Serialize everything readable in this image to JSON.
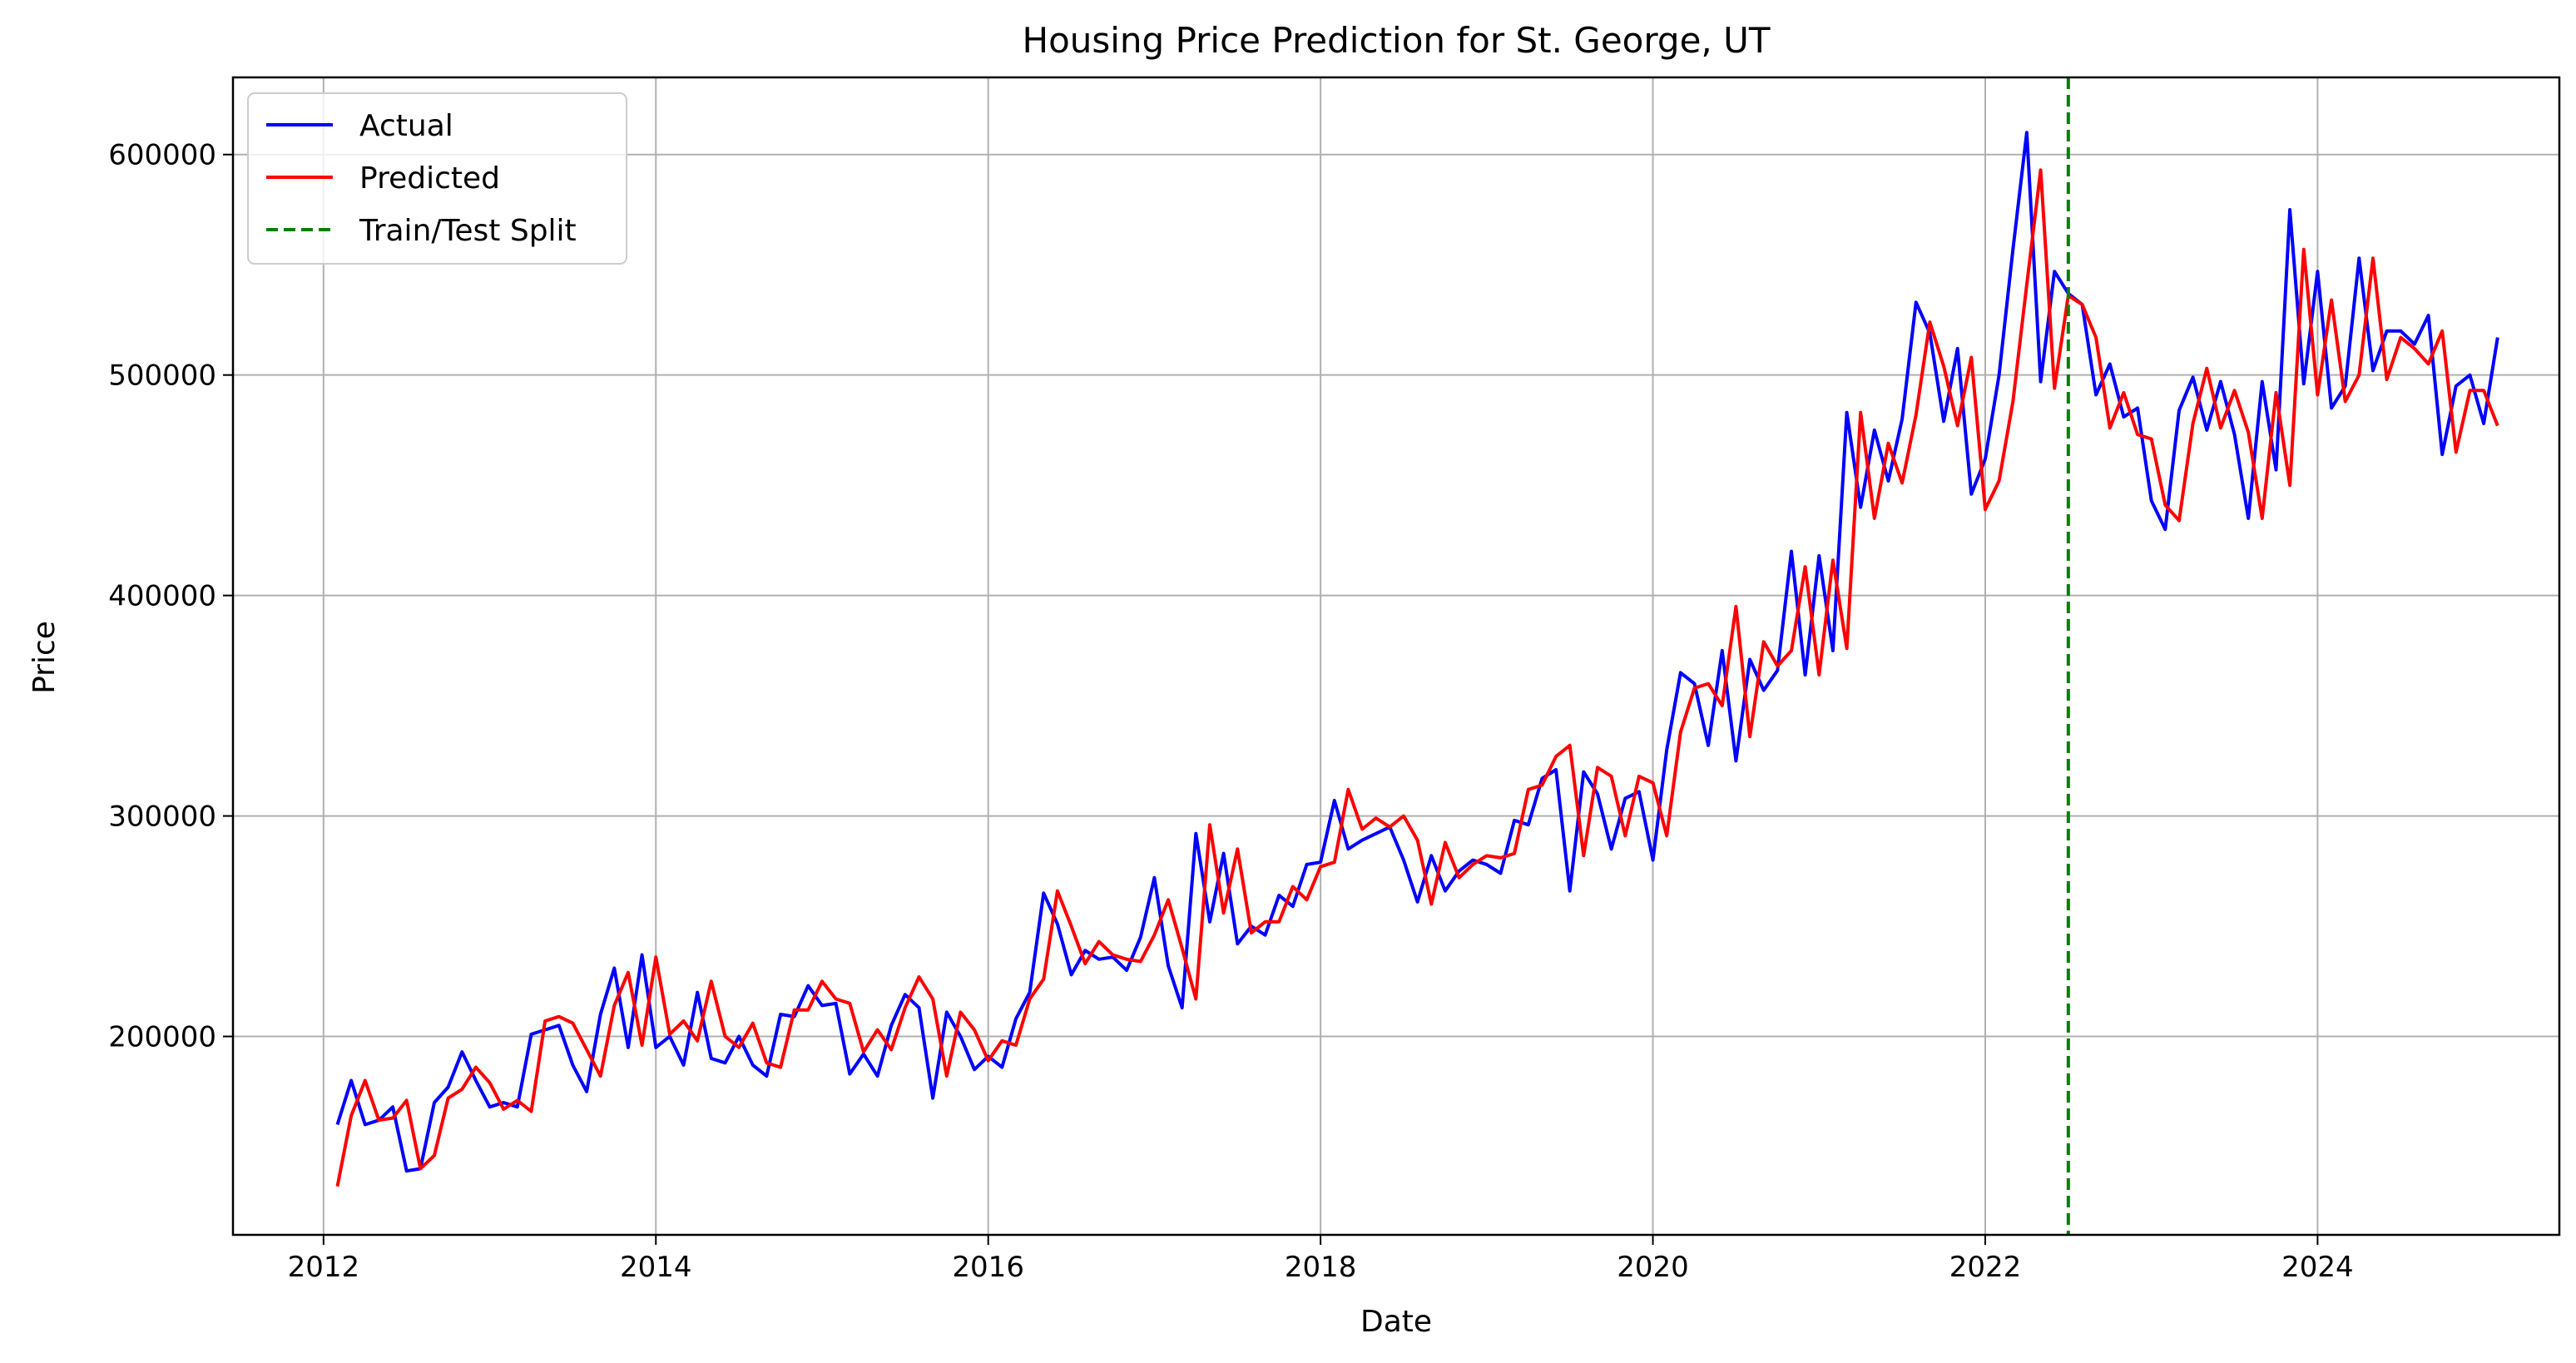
{
  "figure": {
    "title": "Housing Price Prediction for St. George, UT",
    "xlabel": "Date",
    "ylabel": "Price"
  },
  "legend": {
    "placement": "top-left",
    "items": [
      {
        "label": "Actual",
        "color": "#0000ff",
        "style": "solid"
      },
      {
        "label": "Predicted",
        "color": "#ff0000",
        "style": "solid"
      },
      {
        "label": "Train/Test Split",
        "color": "#008000",
        "style": "dashed"
      }
    ]
  },
  "chart_data": {
    "type": "line",
    "title": "Housing Price Prediction for St. George, UT",
    "xlabel": "Date",
    "ylabel": "Price",
    "x_type": "date",
    "xlim": [
      "2011-06-15",
      "2025-06-15"
    ],
    "ylim": [
      110000,
      635000
    ],
    "grid": true,
    "x_ticks": [
      "2012",
      "2014",
      "2016",
      "2018",
      "2020",
      "2022",
      "2024"
    ],
    "y_ticks": [
      200000,
      300000,
      400000,
      500000,
      600000
    ],
    "split_date": "2022-07-01",
    "x": [
      "2012-02",
      "2012-03",
      "2012-04",
      "2012-05",
      "2012-06",
      "2012-07",
      "2012-08",
      "2012-09",
      "2012-10",
      "2012-11",
      "2012-12",
      "2013-01",
      "2013-02",
      "2013-03",
      "2013-04",
      "2013-05",
      "2013-06",
      "2013-07",
      "2013-08",
      "2013-09",
      "2013-10",
      "2013-11",
      "2013-12",
      "2014-01",
      "2014-02",
      "2014-03",
      "2014-04",
      "2014-05",
      "2014-06",
      "2014-07",
      "2014-08",
      "2014-09",
      "2014-10",
      "2014-11",
      "2014-12",
      "2015-01",
      "2015-02",
      "2015-03",
      "2015-04",
      "2015-05",
      "2015-06",
      "2015-07",
      "2015-08",
      "2015-09",
      "2015-10",
      "2015-11",
      "2015-12",
      "2016-01",
      "2016-02",
      "2016-03",
      "2016-04",
      "2016-05",
      "2016-06",
      "2016-07",
      "2016-08",
      "2016-09",
      "2016-10",
      "2016-11",
      "2016-12",
      "2017-01",
      "2017-02",
      "2017-03",
      "2017-04",
      "2017-05",
      "2017-06",
      "2017-07",
      "2017-08",
      "2017-09",
      "2017-10",
      "2017-11",
      "2017-12",
      "2018-01",
      "2018-02",
      "2018-03",
      "2018-04",
      "2018-05",
      "2018-06",
      "2018-07",
      "2018-08",
      "2018-09",
      "2018-10",
      "2018-11",
      "2018-12",
      "2019-01",
      "2019-02",
      "2019-03",
      "2019-04",
      "2019-05",
      "2019-06",
      "2019-07",
      "2019-08",
      "2019-09",
      "2019-10",
      "2019-11",
      "2019-12",
      "2020-01",
      "2020-02",
      "2020-03",
      "2020-04",
      "2020-05",
      "2020-06",
      "2020-07",
      "2020-08",
      "2020-09",
      "2020-10",
      "2020-11",
      "2020-12",
      "2021-01",
      "2021-02",
      "2021-03",
      "2021-04",
      "2021-05",
      "2021-06",
      "2021-07",
      "2021-08",
      "2021-09",
      "2021-10",
      "2021-11",
      "2021-12",
      "2022-01",
      "2022-02",
      "2022-03",
      "2022-04",
      "2022-05",
      "2022-06",
      "2022-07",
      "2022-08",
      "2022-09",
      "2022-10",
      "2022-11",
      "2022-12",
      "2023-01",
      "2023-02",
      "2023-03",
      "2023-04",
      "2023-05",
      "2023-06",
      "2023-07",
      "2023-08",
      "2023-09",
      "2023-10",
      "2023-11",
      "2023-12",
      "2024-01",
      "2024-02",
      "2024-03",
      "2024-04",
      "2024-05",
      "2024-06",
      "2024-07",
      "2024-08",
      "2024-09",
      "2024-10",
      "2024-11",
      "2024-12",
      "2025-01",
      "2025-02"
    ],
    "series": [
      {
        "name": "Actual",
        "color": "#0000ff",
        "values": [
          160000,
          180000,
          160000,
          162000,
          168000,
          139000,
          140000,
          170000,
          177000,
          193000,
          180000,
          168000,
          170000,
          168000,
          201000,
          203000,
          205000,
          187000,
          175000,
          210000,
          231000,
          195000,
          237000,
          195000,
          200000,
          187000,
          220000,
          190000,
          188000,
          200000,
          187000,
          182000,
          210000,
          209000,
          223000,
          214000,
          215000,
          183000,
          192000,
          182000,
          205000,
          219000,
          213000,
          172000,
          211000,
          200000,
          185000,
          191000,
          186000,
          208000,
          220000,
          265000,
          251000,
          228000,
          239000,
          235000,
          236000,
          230000,
          245000,
          272000,
          232000,
          213000,
          292000,
          252000,
          283000,
          242000,
          250000,
          246000,
          264000,
          259000,
          278000,
          279000,
          307000,
          285000,
          289000,
          292000,
          295000,
          280000,
          261000,
          282000,
          266000,
          275000,
          280000,
          278000,
          274000,
          298000,
          296000,
          317000,
          321000,
          266000,
          320000,
          310000,
          285000,
          308000,
          311000,
          280000,
          330000,
          365000,
          360000,
          332000,
          375000,
          325000,
          371000,
          357000,
          366000,
          420000,
          364000,
          418000,
          375000,
          483000,
          440000,
          475000,
          452000,
          480000,
          533000,
          519000,
          479000,
          512000,
          446000,
          462000,
          500000,
          557000,
          610000,
          497000,
          547000,
          537000,
          532000,
          491000,
          505000,
          481000,
          485000,
          443000,
          430000,
          484000,
          499000,
          475000,
          497000,
          473000,
          435000,
          497000,
          457000,
          575000,
          496000,
          547000,
          485000,
          495000,
          553000,
          502000,
          520000,
          520000,
          514000,
          527000,
          464000,
          495000,
          500000,
          478000,
          517000
        ]
      },
      {
        "name": "Predicted",
        "color": "#ff0000",
        "values": [
          132000,
          164000,
          180000,
          162000,
          163000,
          171000,
          140000,
          146000,
          172000,
          176000,
          186000,
          179000,
          167000,
          171000,
          166000,
          207000,
          209000,
          206000,
          194000,
          182000,
          214000,
          229000,
          196000,
          236000,
          201000,
          207000,
          198000,
          225000,
          200000,
          195000,
          206000,
          188000,
          186000,
          212000,
          212000,
          225000,
          217000,
          215000,
          193000,
          203000,
          194000,
          213000,
          227000,
          217000,
          182000,
          211000,
          203000,
          189000,
          198000,
          196000,
          217000,
          226000,
          266000,
          250000,
          233000,
          243000,
          237000,
          235000,
          234000,
          246000,
          262000,
          240000,
          217000,
          296000,
          256000,
          285000,
          247000,
          252000,
          252000,
          268000,
          262000,
          277000,
          279000,
          312000,
          294000,
          299000,
          295000,
          300000,
          289000,
          260000,
          288000,
          272000,
          278000,
          282000,
          281000,
          283000,
          312000,
          314000,
          327000,
          332000,
          282000,
          322000,
          318000,
          291000,
          318000,
          315000,
          291000,
          338000,
          358000,
          360000,
          350000,
          395000,
          336000,
          379000,
          368000,
          375000,
          413000,
          364000,
          416000,
          376000,
          483000,
          435000,
          469000,
          451000,
          482000,
          524000,
          504000,
          477000,
          508000,
          439000,
          452000,
          488000,
          541000,
          593000,
          494000,
          536000,
          532000,
          517000,
          476000,
          492000,
          473000,
          471000,
          441000,
          434000,
          478000,
          503000,
          476000,
          493000,
          474000,
          435000,
          492000,
          450000,
          557000,
          491000,
          534000,
          488000,
          500000,
          553000,
          498000,
          517000,
          512000,
          505000,
          520000,
          465000,
          493000,
          493000,
          477000
        ]
      }
    ]
  }
}
